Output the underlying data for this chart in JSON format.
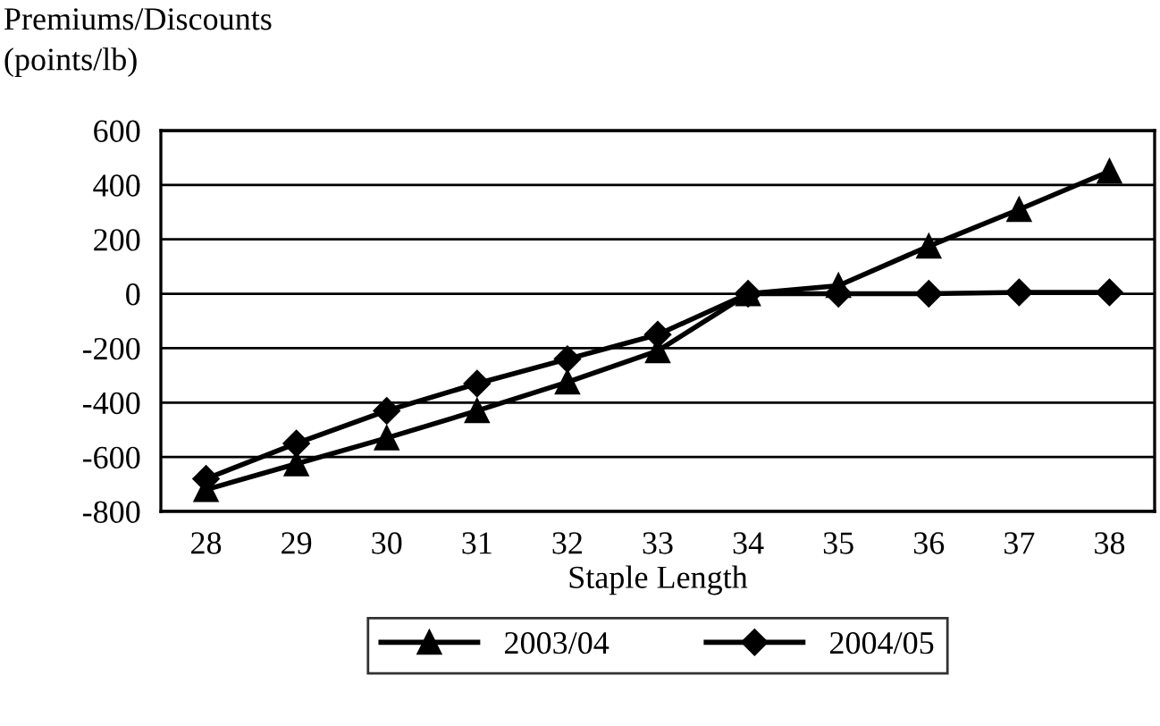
{
  "chart_data": {
    "type": "line",
    "ylabel": "Premiums/Discounts\n(points/lb)",
    "xlabel": "Staple Length",
    "categories": [
      "28",
      "29",
      "30",
      "31",
      "32",
      "33",
      "34",
      "35",
      "36",
      "37",
      "38"
    ],
    "series": [
      {
        "name": "2003/04",
        "color": "#000000",
        "marker": "triangle",
        "values": [
          -720,
          -625,
          -530,
          -430,
          -325,
          -210,
          0,
          30,
          175,
          310,
          450
        ]
      },
      {
        "name": "2004/05",
        "color": "#000000",
        "marker": "diamond",
        "values": [
          -680,
          -550,
          -430,
          -330,
          -240,
          -150,
          0,
          0,
          0,
          5,
          5
        ]
      }
    ],
    "ylim": [
      -800,
      600
    ],
    "yticks": [
      -800,
      -600,
      -400,
      -200,
      0,
      200,
      400,
      600
    ],
    "grid": "y",
    "legend": "bottom",
    "line_style": "solid"
  }
}
